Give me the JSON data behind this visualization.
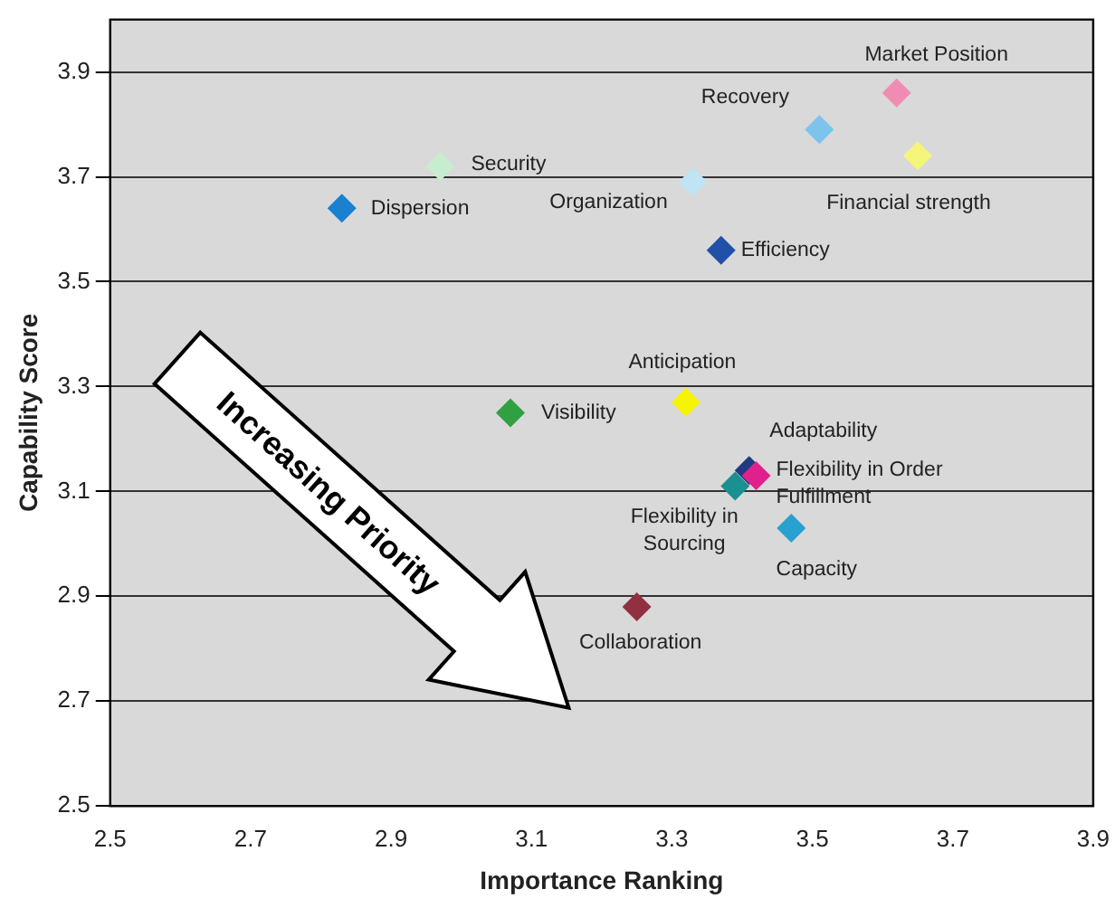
{
  "chart_data": {
    "type": "scatter",
    "xlabel": "Importance Ranking",
    "ylabel": "Capability Score",
    "xlim": [
      2.5,
      3.9
    ],
    "xticks": [
      2.5,
      2.7,
      2.9,
      3.1,
      3.3,
      3.5,
      3.7,
      3.9
    ],
    "ylim": [
      2.5,
      4.0
    ],
    "yticks": [
      2.5,
      2.7,
      2.9,
      3.1,
      3.3,
      3.5,
      3.7,
      3.9
    ],
    "grid": "y",
    "legend": false,
    "marker": "diamond",
    "annotations": [
      "Increasing Priority"
    ],
    "series": [
      {
        "name": "Market Position",
        "color": "#f08cb4",
        "x": [
          3.62
        ],
        "values": [
          3.86
        ]
      },
      {
        "name": "Recovery",
        "color": "#7cc4ec",
        "x": [
          3.51
        ],
        "values": [
          3.79
        ]
      },
      {
        "name": "Financial strength",
        "color": "#f5f57a",
        "x": [
          3.65
        ],
        "values": [
          3.74
        ]
      },
      {
        "name": "Security",
        "color": "#c8ecd0",
        "x": [
          2.97
        ],
        "values": [
          3.72
        ]
      },
      {
        "name": "Dispersion",
        "color": "#1a80d0",
        "x": [
          2.83
        ],
        "values": [
          3.64
        ]
      },
      {
        "name": "Organization",
        "color": "#c0e4f4",
        "x": [
          3.33
        ],
        "values": [
          3.69
        ]
      },
      {
        "name": "Efficiency",
        "color": "#2050a8",
        "x": [
          3.37
        ],
        "values": [
          3.56
        ]
      },
      {
        "name": "Anticipation",
        "color": "#f5f500",
        "x": [
          3.32
        ],
        "values": [
          3.27
        ]
      },
      {
        "name": "Visibility",
        "color": "#30a040",
        "x": [
          3.07
        ],
        "values": [
          3.25
        ]
      },
      {
        "name": "Adaptability",
        "color": "#1f3a80",
        "x": [
          3.41
        ],
        "values": [
          3.14
        ]
      },
      {
        "name": "Flexibility in Order Fulfillment",
        "color": "#e0208c",
        "x": [
          3.42
        ],
        "values": [
          3.13
        ]
      },
      {
        "name": "Flexibility in Sourcing",
        "color": "#1a9090",
        "x": [
          3.39
        ],
        "values": [
          3.11
        ]
      },
      {
        "name": "Capacity",
        "color": "#28a0d0",
        "x": [
          3.47
        ],
        "values": [
          3.03
        ]
      },
      {
        "name": "Collaboration",
        "color": "#903040",
        "x": [
          3.25
        ],
        "values": [
          2.88
        ]
      }
    ]
  }
}
